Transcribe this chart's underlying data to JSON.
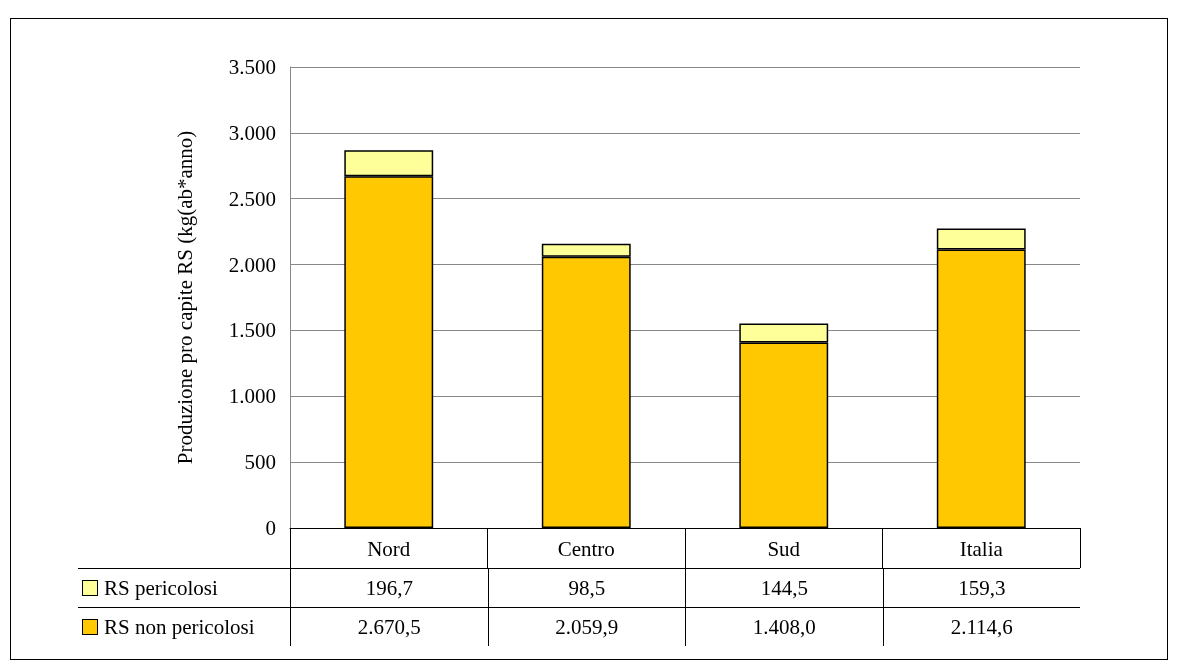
{
  "chart_data": {
    "type": "bar",
    "stacked": true,
    "ylabel": "Produzione pro capite RS (kg(ab*anno)",
    "categories": [
      "Nord",
      "Centro",
      "Sud",
      "Italia"
    ],
    "series": [
      {
        "name": "RS non pericolosi",
        "color": "#ffc800",
        "values": [
          2670.5,
          2059.9,
          1408.0,
          2114.6
        ],
        "value_labels": [
          "2.670,5",
          "2.059,9",
          "1.408,0",
          "2.114,6"
        ]
      },
      {
        "name": "RS pericolosi",
        "color": "#ffff99",
        "values": [
          196.7,
          98.5,
          144.5,
          159.3
        ],
        "value_labels": [
          "196,7",
          "98,5",
          "144,5",
          "159,3"
        ]
      }
    ],
    "ylim": [
      0,
      3500
    ],
    "yticks": [
      0,
      500,
      {
        "value": 1000,
        "label": "1.000"
      },
      {
        "value": 1500,
        "label": "1.500"
      },
      {
        "value": 2000,
        "label": "2.000"
      },
      {
        "value": 2500,
        "label": "2.500"
      },
      {
        "value": 3000,
        "label": "3.000"
      },
      {
        "value": 3500,
        "label": "3.500"
      }
    ],
    "grid": "y",
    "legend": "bottom left"
  }
}
